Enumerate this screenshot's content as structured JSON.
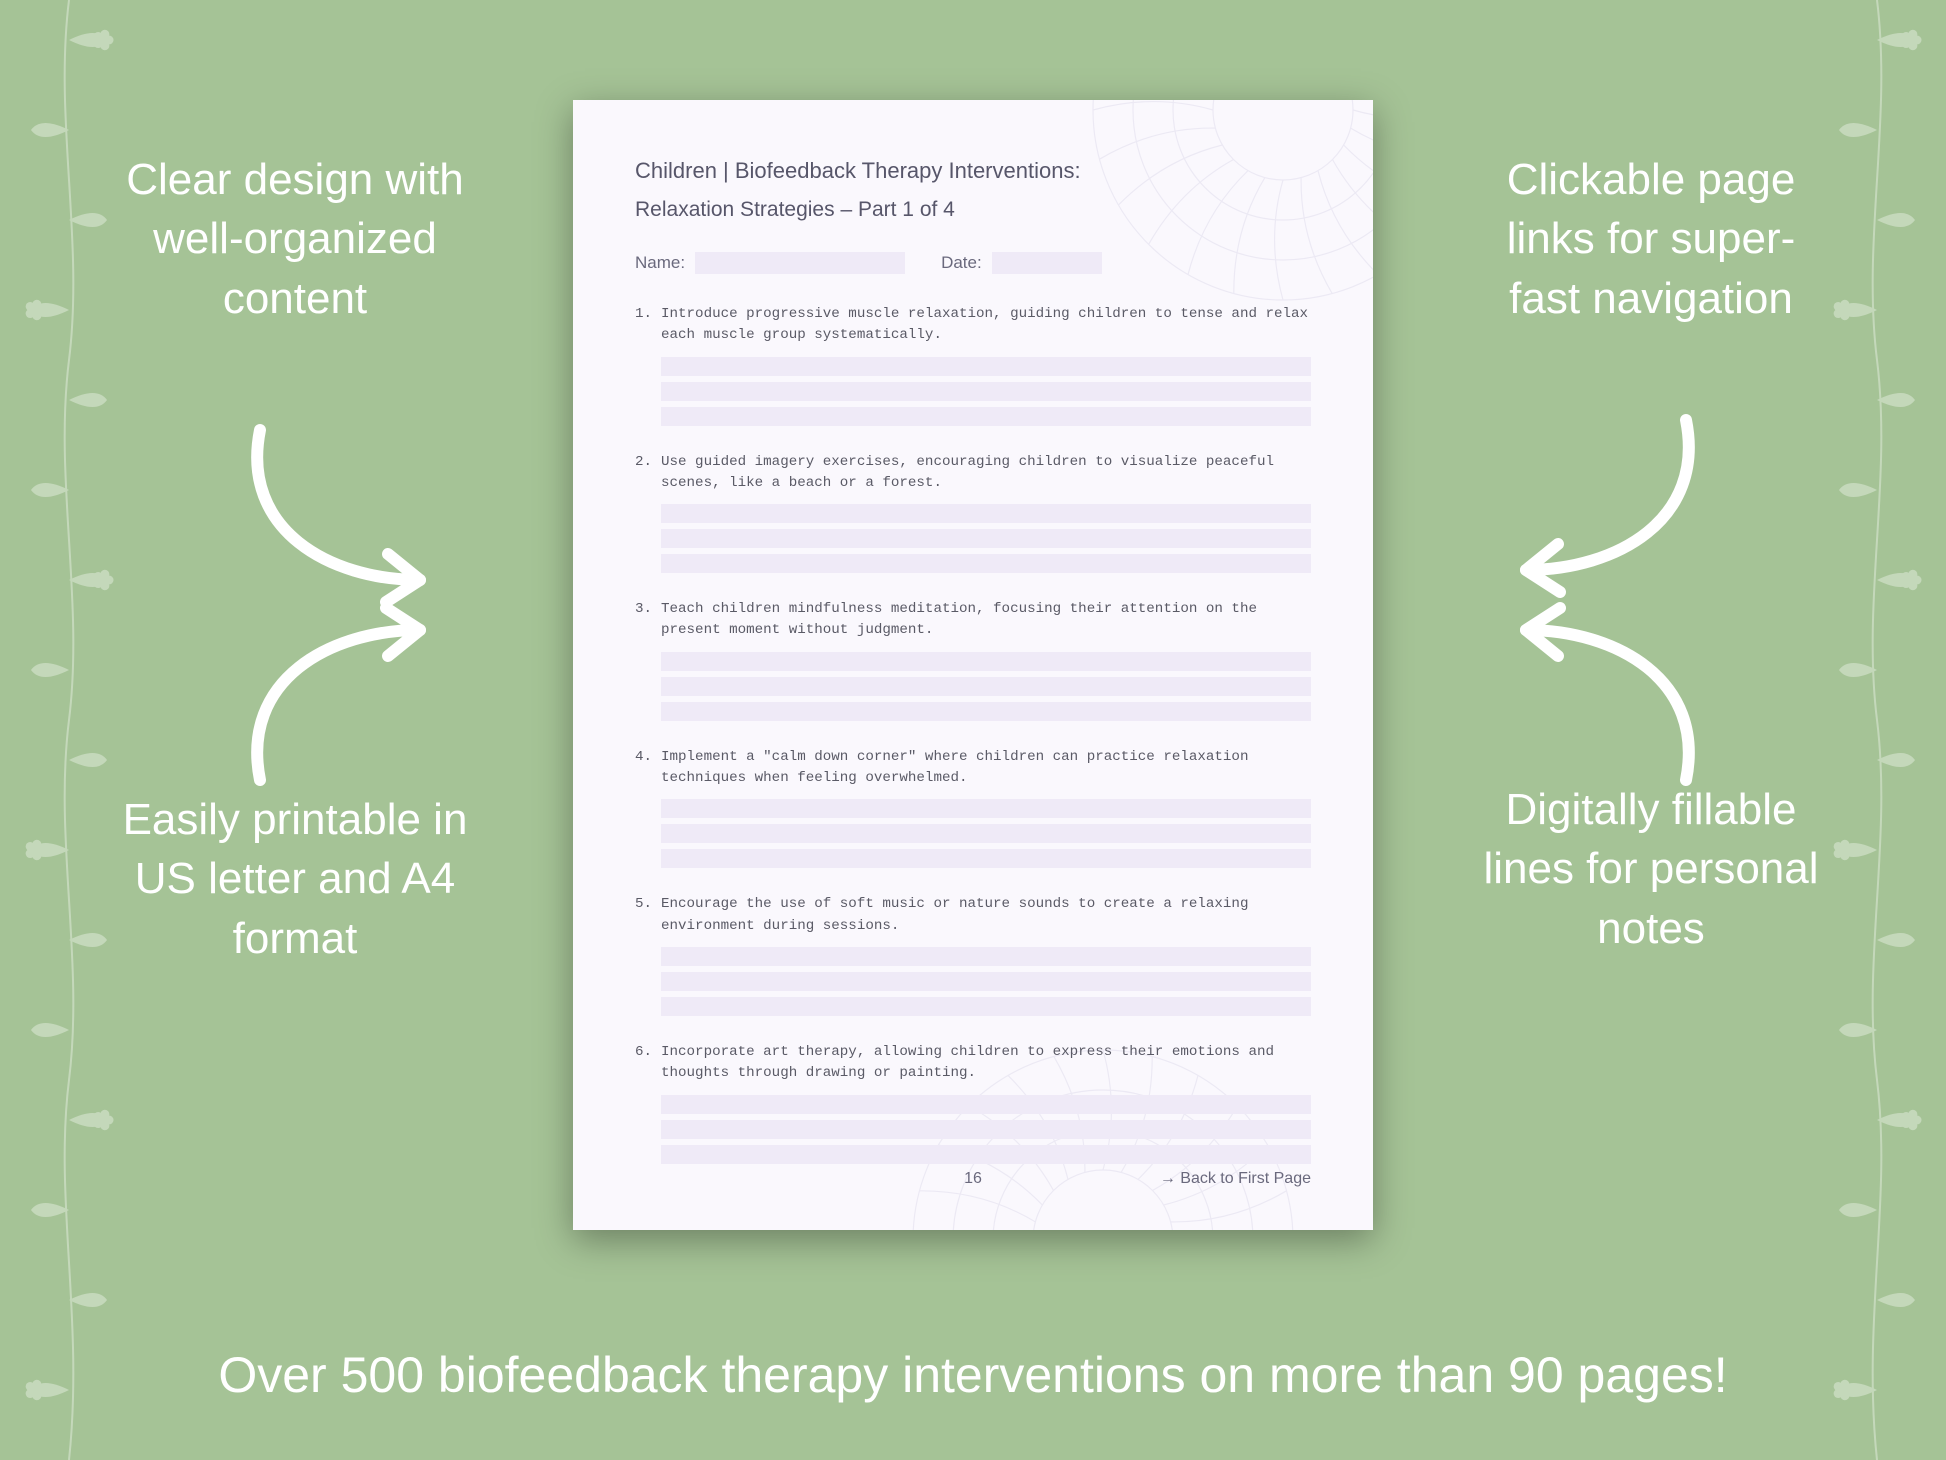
{
  "background_color": "#a5c396",
  "text_color": "#ffffff",
  "callouts": {
    "top_left": "Clear design with well-organized content",
    "top_right": "Clickable page links for super-fast navigation",
    "bottom_left": "Easily printable in US letter and A4 format",
    "bottom_right": "Digitally fillable lines for personal notes"
  },
  "tagline": "Over 500 biofeedback therapy interventions on more than 90 pages!",
  "page": {
    "background_color": "#faf8fd",
    "accent_fill": "#efeaf7",
    "title_line1": "Children | Biofeedback Therapy Interventions:",
    "title_line2": "Relaxation Strategies  – Part 1 of 4",
    "name_label": "Name:",
    "date_label": "Date:",
    "items": [
      "Introduce progressive muscle relaxation, guiding children to tense and relax each muscle group systematically.",
      "Use guided imagery exercises, encouraging children to visualize peaceful scenes, like a beach or a forest.",
      "Teach children mindfulness meditation, focusing their attention on the present moment without judgment.",
      "Implement a \"calm down corner\" where children can practice relaxation techniques when feeling overwhelmed.",
      "Encourage the use of soft music or nature sounds to create a relaxing environment during sessions.",
      "Incorporate art therapy, allowing children to express their emotions and thoughts through drawing or painting."
    ],
    "page_number": "16",
    "back_link": "→ Back to First Page"
  },
  "styling": {
    "callout_fontsize": 44,
    "tagline_fontsize": 50,
    "page_title_fontsize": 22,
    "item_font": "Courier New",
    "item_fontsize": 14.2,
    "lines_per_item": 3
  }
}
